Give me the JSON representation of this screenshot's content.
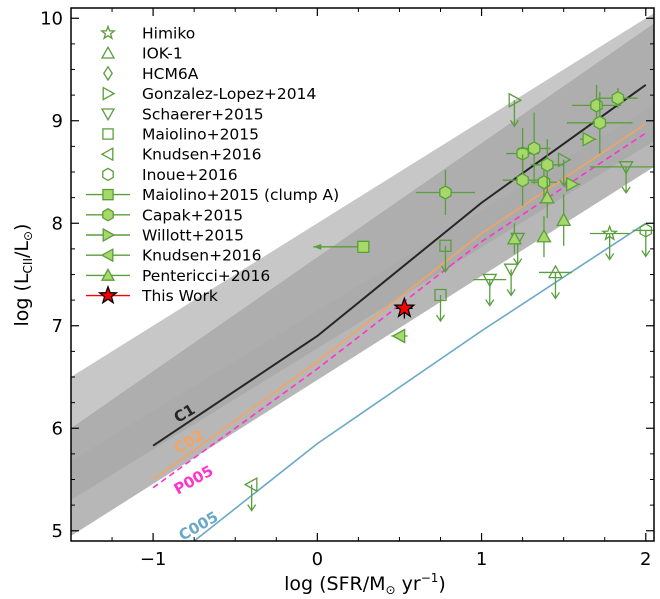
{
  "chart_data": {
    "type": "scatter",
    "xlabel_main": "log (SFR/M",
    "xlabel_sub": "⊙",
    "xlabel_unit": " yr",
    "xlabel_sup": "−1",
    "xlabel_close": ")",
    "ylabel_main": "log (L",
    "ylabel_sub": "CII",
    "ylabel_mid": "/L",
    "ylabel_sub2": "⊙",
    "ylabel_close": ")",
    "xlim": [
      -1.5,
      2.05
    ],
    "ylim": [
      4.9,
      10.1
    ],
    "xticks": [
      -1,
      0,
      1,
      2
    ],
    "xtick_labels": [
      "−1",
      "0",
      "1",
      "2"
    ],
    "yticks": [
      5,
      6,
      7,
      8,
      9,
      10
    ],
    "ytick_labels": [
      "5",
      "6",
      "7",
      "8",
      "9",
      "10"
    ],
    "colors": {
      "green": "#5a9e3c",
      "green_fill": "#a6d96a",
      "band_light": "#dcdcdc",
      "band_mid": "#bdbdbd",
      "band_dark": "#999999",
      "c1": "#262626",
      "c02": "#f4a460",
      "p005": "#ff33cc",
      "c005": "#6aa8c8",
      "this_work": "#ff0000"
    },
    "bands": [
      {
        "name": "light",
        "upper": [
          [
            -1.5,
            5.68
          ],
          [
            2.05,
            9.15
          ]
        ],
        "lower": [
          [
            -1.5,
            4.95
          ],
          [
            2.05,
            8.55
          ]
        ]
      },
      {
        "name": "mid",
        "upper": [
          [
            -1.5,
            6.0
          ],
          [
            2.05,
            9.95
          ]
        ],
        "lower": [
          [
            -1.5,
            5.3
          ],
          [
            2.05,
            8.8
          ]
        ]
      },
      {
        "name": "dark",
        "upper": [
          [
            -1.5,
            6.5
          ],
          [
            2.05,
            10.05
          ]
        ],
        "lower": [
          [
            -1.5,
            4.95
          ],
          [
            2.05,
            8.55
          ]
        ]
      }
    ],
    "model_lines": [
      {
        "label": "C1",
        "color_key": "c1",
        "dash": "",
        "points": [
          [
            -1,
            5.83
          ],
          [
            0,
            6.9
          ],
          [
            1,
            8.2
          ],
          [
            2,
            9.35
          ]
        ],
        "label_at": [
          -0.85,
          6.05
        ],
        "label_angle": -30
      },
      {
        "label": "C02",
        "color_key": "c02",
        "dash": "",
        "points": [
          [
            -1,
            5.5
          ],
          [
            0,
            6.65
          ],
          [
            1,
            7.9
          ],
          [
            2,
            8.97
          ]
        ],
        "label_at": [
          -0.85,
          5.75
        ],
        "label_angle": -30
      },
      {
        "label": "P005",
        "color_key": "p005",
        "dash": "6,4",
        "points": [
          [
            -1,
            5.42
          ],
          [
            0,
            6.58
          ],
          [
            1,
            7.82
          ],
          [
            2,
            8.88
          ]
        ],
        "label_at": [
          -0.85,
          5.35
        ],
        "label_angle": -30
      },
      {
        "label": "C005",
        "color_key": "c005",
        "dash": "",
        "points": [
          [
            -0.75,
            4.9
          ],
          [
            0,
            5.85
          ],
          [
            1,
            6.95
          ],
          [
            2,
            8.0
          ]
        ],
        "label_at": [
          -0.82,
          4.9
        ],
        "label_angle": -30
      }
    ],
    "legend": [
      {
        "label": "Himiko",
        "marker": "star",
        "filled": false
      },
      {
        "label": "IOK-1",
        "marker": "triangle-up",
        "filled": false
      },
      {
        "label": "HCM6A",
        "marker": "diamond",
        "filled": false
      },
      {
        "label": "Gonzalez-Lopez+2014",
        "marker": "triangle-right",
        "filled": false
      },
      {
        "label": "Schaerer+2015",
        "marker": "triangle-down",
        "filled": false
      },
      {
        "label": "Maiolino+2015",
        "marker": "square",
        "filled": false
      },
      {
        "label": "Knudsen+2016",
        "marker": "triangle-left",
        "filled": false
      },
      {
        "label": "Inoue+2016",
        "marker": "hexagon",
        "filled": false
      },
      {
        "label": "Maiolino+2015 (clump A)",
        "marker": "square",
        "filled": true
      },
      {
        "label": "Capak+2015",
        "marker": "hexagon",
        "filled": true
      },
      {
        "label": "Willott+2015",
        "marker": "triangle-right",
        "filled": true
      },
      {
        "label": "Knudsen+2016",
        "marker": "triangle-left",
        "filled": true
      },
      {
        "label": "Pentericci+2016",
        "marker": "triangle-up",
        "filled": true
      },
      {
        "label": "This Work",
        "marker": "star",
        "filled": true,
        "red": true
      }
    ],
    "points": [
      {
        "series": "Gonzalez-Lopez+2014",
        "marker": "triangle-right",
        "filled": false,
        "x": 1.2,
        "y": 9.2,
        "upper_limit": true
      },
      {
        "series": "Gonzalez-Lopez+2014",
        "marker": "triangle-right",
        "filled": false,
        "x": 1.5,
        "y": 8.62,
        "upper_limit": true
      },
      {
        "series": "Schaerer+2015",
        "marker": "triangle-down",
        "filled": false,
        "x": 1.05,
        "y": 7.45,
        "upper_limit": true,
        "xerr": 0.1
      },
      {
        "series": "Schaerer+2015",
        "marker": "triangle-down",
        "filled": false,
        "x": 1.18,
        "y": 7.55,
        "upper_limit": true
      },
      {
        "series": "Schaerer+2015",
        "marker": "triangle-down",
        "filled": false,
        "x": 1.22,
        "y": 7.85,
        "upper_limit": true
      },
      {
        "series": "Schaerer+2015",
        "marker": "triangle-down",
        "filled": false,
        "x": 1.88,
        "y": 8.55,
        "upper_limit": true,
        "xerr": 0.22
      },
      {
        "series": "Maiolino+2015",
        "marker": "square",
        "filled": false,
        "x": 0.78,
        "y": 7.78,
        "upper_limit": true
      },
      {
        "series": "Maiolino+2015",
        "marker": "square",
        "filled": false,
        "x": 0.75,
        "y": 7.3,
        "upper_limit": true
      },
      {
        "series": "Knudsen+2016",
        "marker": "triangle-left",
        "filled": false,
        "x": -0.4,
        "y": 5.45,
        "upper_limit": true
      },
      {
        "series": "Himiko",
        "marker": "star",
        "filled": false,
        "x": 1.78,
        "y": 7.9,
        "upper_limit": true,
        "xerr": 0.12
      },
      {
        "series": "IOK-1",
        "marker": "triangle-up",
        "filled": false,
        "x": 1.45,
        "y": 7.52,
        "upper_limit": true,
        "xerr": 0.1
      },
      {
        "series": "Inoue+2016",
        "marker": "hexagon",
        "filled": false,
        "x": 2.0,
        "y": 7.93,
        "upper_limit": true,
        "xerr": 0.08
      },
      {
        "series": "Maiolino+2015 (clump A)",
        "marker": "square",
        "filled": true,
        "x": 0.28,
        "y": 7.77,
        "left_arrow": true
      },
      {
        "series": "Capak+2015",
        "marker": "hexagon",
        "filled": true,
        "x": 0.78,
        "y": 8.3,
        "xerr": 0.18,
        "yerr": 0.22
      },
      {
        "series": "Capak+2015",
        "marker": "hexagon",
        "filled": true,
        "x": 1.25,
        "y": 8.68,
        "xerr": 0.1,
        "yerr": 0.25
      },
      {
        "series": "Capak+2015",
        "marker": "hexagon",
        "filled": true,
        "x": 1.32,
        "y": 8.73,
        "xerr": 0.1,
        "yerr": 0.35
      },
      {
        "series": "Capak+2015",
        "marker": "hexagon",
        "filled": true,
        "x": 1.25,
        "y": 8.42,
        "xerr": 0.12,
        "yerr": 0.25
      },
      {
        "series": "Capak+2015",
        "marker": "hexagon",
        "filled": true,
        "x": 1.38,
        "y": 8.4,
        "xerr": 0.08,
        "yerr": 0.2
      },
      {
        "series": "Capak+2015",
        "marker": "hexagon",
        "filled": true,
        "x": 1.4,
        "y": 8.57,
        "xerr": 0.1,
        "yerr": 0.25
      },
      {
        "series": "Capak+2015",
        "marker": "hexagon",
        "filled": true,
        "x": 1.7,
        "y": 9.15,
        "xerr": 0.15,
        "yerr": 0.2
      },
      {
        "series": "Capak+2015",
        "marker": "hexagon",
        "filled": true,
        "x": 1.72,
        "y": 8.98,
        "xerr": 0.2,
        "yerr": 0.3
      },
      {
        "series": "Capak+2015",
        "marker": "hexagon",
        "filled": true,
        "x": 1.83,
        "y": 9.22,
        "xerr": 0.12,
        "yerr": 0.1
      },
      {
        "series": "Willott+2015",
        "marker": "triangle-right",
        "filled": true,
        "x": 1.65,
        "y": 8.82,
        "xerr": 0.05
      },
      {
        "series": "Willott+2015",
        "marker": "triangle-right",
        "filled": true,
        "x": 1.55,
        "y": 8.38,
        "xerr": 0.05
      },
      {
        "series": "Knudsen+2016",
        "marker": "triangle-left",
        "filled": true,
        "x": 0.5,
        "y": 6.9,
        "xerr": 0.05
      },
      {
        "series": "Pentericci+2016",
        "marker": "triangle-up",
        "filled": true,
        "x": 1.2,
        "y": 7.85,
        "yerr": 0.15
      },
      {
        "series": "Pentericci+2016",
        "marker": "triangle-up",
        "filled": true,
        "x": 1.38,
        "y": 7.87,
        "yerr": 0.2
      },
      {
        "series": "Pentericci+2016",
        "marker": "triangle-up",
        "filled": true,
        "x": 1.4,
        "y": 8.25,
        "yerr": 0.2
      },
      {
        "series": "Pentericci+2016",
        "marker": "triangle-up",
        "filled": true,
        "x": 1.5,
        "y": 8.03,
        "yerr": 0.25
      },
      {
        "series": "This Work",
        "marker": "star",
        "filled": true,
        "red": true,
        "x": 0.53,
        "y": 7.17,
        "xerr": 0.05,
        "yerr": 0.1
      }
    ]
  }
}
